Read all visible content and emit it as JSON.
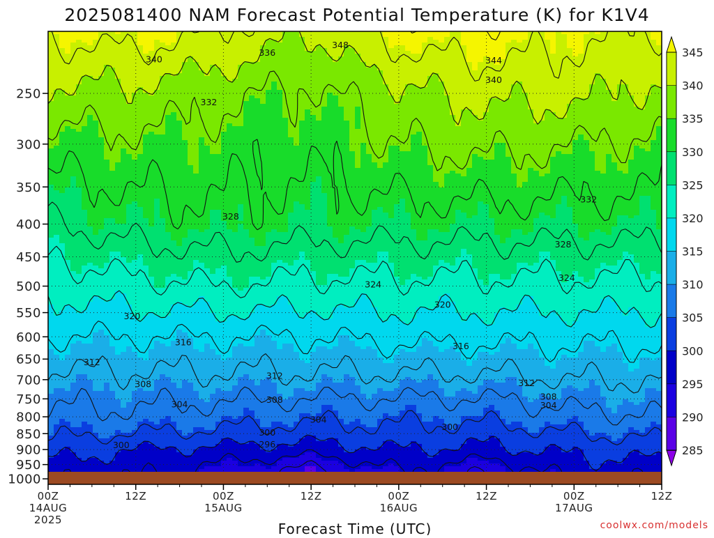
{
  "chart_data": {
    "type": "contour",
    "title": "2025081400 NAM Forecast Potential Temperature (K) for K1V4",
    "xlabel": "Forecast Time (UTC)",
    "ylabel": "",
    "credit": "coolwx.com/models",
    "x_ticks": [
      {
        "hours": 0,
        "line1": "00Z",
        "line2": "14AUG",
        "line3": "2025"
      },
      {
        "hours": 12,
        "line1": "12Z",
        "line2": "",
        "line3": ""
      },
      {
        "hours": 24,
        "line1": "00Z",
        "line2": "15AUG",
        "line3": ""
      },
      {
        "hours": 36,
        "line1": "12Z",
        "line2": "",
        "line3": ""
      },
      {
        "hours": 48,
        "line1": "00Z",
        "line2": "16AUG",
        "line3": ""
      },
      {
        "hours": 60,
        "line1": "12Z",
        "line2": "",
        "line3": ""
      },
      {
        "hours": 72,
        "line1": "00Z",
        "line2": "17AUG",
        "line3": ""
      },
      {
        "hours": 84,
        "line1": "12Z",
        "line2": "",
        "line3": ""
      }
    ],
    "xlim": [
      0,
      84
    ],
    "y_ticks": [
      250,
      300,
      350,
      400,
      450,
      500,
      550,
      600,
      650,
      700,
      750,
      800,
      850,
      900,
      950,
      1000
    ],
    "ylim_hpa": [
      200,
      1020
    ],
    "y_scale": "log (pressure)",
    "grid": "dotted",
    "ground_level_hpa": 975,
    "colorbar": {
      "placement": "right",
      "levels": [
        285,
        290,
        295,
        300,
        305,
        310,
        315,
        320,
        325,
        330,
        335,
        340,
        345
      ],
      "colors": [
        "#8d00e8",
        "#5a00e6",
        "#1b00e0",
        "#0000c8",
        "#0a3ee0",
        "#1a7ae8",
        "#1aaee8",
        "#00d8ee",
        "#00eec0",
        "#00e070",
        "#18dc2a",
        "#7ae800",
        "#c8f000",
        "#f5f500"
      ]
    },
    "contour_levels_K": [
      288,
      292,
      296,
      300,
      304,
      308,
      312,
      316,
      320,
      324,
      328,
      332,
      336,
      340,
      344,
      348
    ],
    "profiles": [
      {
        "hours": 0,
        "theta_at": {
          "975": 297,
          "900": 302,
          "850": 305,
          "800": 307,
          "700": 311,
          "600": 316,
          "500": 321,
          "400": 328,
          "300": 334,
          "250": 339,
          "200": 345
        }
      },
      {
        "hours": 12,
        "theta_at": {
          "975": 297,
          "900": 300,
          "850": 304,
          "800": 307,
          "700": 311,
          "600": 316,
          "500": 323,
          "400": 330,
          "300": 335,
          "250": 339,
          "200": 346
        }
      },
      {
        "hours": 24,
        "theta_at": {
          "975": 294,
          "900": 299,
          "850": 303,
          "800": 306,
          "700": 311,
          "600": 316,
          "500": 324,
          "400": 331,
          "300": 334,
          "250": 337,
          "200": 344
        }
      },
      {
        "hours": 36,
        "theta_at": {
          "975": 290,
          "900": 298,
          "850": 302,
          "800": 305,
          "700": 311,
          "600": 316,
          "500": 323,
          "400": 330,
          "300": 333,
          "250": 335,
          "200": 340
        }
      },
      {
        "hours": 48,
        "theta_at": {
          "975": 296,
          "900": 300,
          "850": 303,
          "800": 305,
          "700": 311,
          "600": 317,
          "500": 323,
          "400": 330,
          "300": 336,
          "250": 339,
          "200": 346
        }
      },
      {
        "hours": 60,
        "theta_at": {
          "975": 292,
          "900": 299,
          "850": 302,
          "800": 305,
          "700": 311,
          "600": 317,
          "500": 323,
          "400": 330,
          "300": 337,
          "250": 341,
          "200": 347
        }
      },
      {
        "hours": 72,
        "theta_at": {
          "975": 298,
          "900": 301,
          "850": 304,
          "800": 307,
          "700": 312,
          "600": 317,
          "500": 323,
          "400": 330,
          "300": 336,
          "250": 341,
          "200": 345
        }
      },
      {
        "hours": 84,
        "theta_at": {
          "975": 297,
          "900": 302,
          "850": 305,
          "800": 308,
          "700": 312,
          "600": 317,
          "500": 323,
          "400": 330,
          "300": 335,
          "250": 339,
          "200": 344
        }
      }
    ],
    "contour_labels": [
      {
        "value": "348",
        "hours": 40,
        "hpa": 210
      },
      {
        "value": "344",
        "hours": 61,
        "hpa": 222
      },
      {
        "value": "340",
        "hours": 14.5,
        "hpa": 221
      },
      {
        "value": "340",
        "hours": 61,
        "hpa": 238
      },
      {
        "value": "336",
        "hours": 30,
        "hpa": 216
      },
      {
        "value": "332",
        "hours": 22,
        "hpa": 258
      },
      {
        "value": "332",
        "hours": 74,
        "hpa": 366
      },
      {
        "value": "328",
        "hours": 25,
        "hpa": 389
      },
      {
        "value": "328",
        "hours": 70.5,
        "hpa": 430
      },
      {
        "value": "324",
        "hours": 44.5,
        "hpa": 497
      },
      {
        "value": "324",
        "hours": 71,
        "hpa": 485
      },
      {
        "value": "320",
        "hours": 11.5,
        "hpa": 557
      },
      {
        "value": "320",
        "hours": 54,
        "hpa": 534
      },
      {
        "value": "316",
        "hours": 18.5,
        "hpa": 612
      },
      {
        "value": "316",
        "hours": 56.5,
        "hpa": 620
      },
      {
        "value": "312",
        "hours": 6,
        "hpa": 657
      },
      {
        "value": "312",
        "hours": 31,
        "hpa": 690
      },
      {
        "value": "312",
        "hours": 65.5,
        "hpa": 708
      },
      {
        "value": "308",
        "hours": 13,
        "hpa": 711
      },
      {
        "value": "308",
        "hours": 31,
        "hpa": 752
      },
      {
        "value": "308",
        "hours": 68.5,
        "hpa": 744
      },
      {
        "value": "304",
        "hours": 18,
        "hpa": 765
      },
      {
        "value": "304",
        "hours": 37,
        "hpa": 808
      },
      {
        "value": "304",
        "hours": 68.5,
        "hpa": 767
      },
      {
        "value": "300",
        "hours": 10,
        "hpa": 885
      },
      {
        "value": "300",
        "hours": 30,
        "hpa": 846
      },
      {
        "value": "300",
        "hours": 55,
        "hpa": 829
      },
      {
        "value": "296",
        "hours": 30,
        "hpa": 883
      }
    ]
  }
}
